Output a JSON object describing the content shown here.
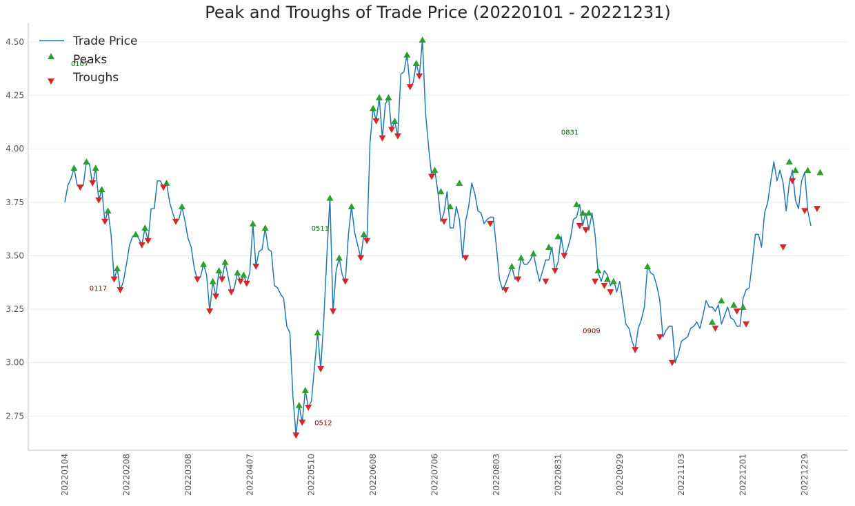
{
  "chart_data": {
    "type": "line",
    "title": "Peak and Troughs of Trade Price (20220101 - 20221231)",
    "xlabel": "",
    "ylabel": "",
    "ylim": [
      2.59,
      4.59
    ],
    "yticks": [
      2.75,
      3.0,
      3.25,
      3.5,
      3.75,
      4.0,
      4.25,
      4.5
    ],
    "ytick_labels": [
      "2.75",
      "3.00",
      "3.25",
      "3.50",
      "3.75",
      "4.00",
      "4.25",
      "4.50"
    ],
    "xtick_labels": [
      "20220104",
      "20220208",
      "20220308",
      "20220407",
      "20220510",
      "20220608",
      "20220706",
      "20220803",
      "20220831",
      "20220929",
      "20221103",
      "20221201",
      "20221229"
    ],
    "grid": "horizontal",
    "legend_position": "top-left",
    "colors": {
      "line": "#1f77b4",
      "peak": "#2ca02c",
      "trough": "#d62728",
      "peak_text": "#006400",
      "trough_text": "#8b0000"
    },
    "series": [
      {
        "name": "Trade Price",
        "marker": "line",
        "values": [
          3.75,
          3.83,
          3.86,
          3.91,
          3.83,
          3.82,
          3.83,
          3.94,
          3.93,
          3.83,
          3.91,
          3.76,
          3.81,
          3.66,
          3.71,
          3.6,
          3.39,
          3.44,
          3.34,
          3.38,
          3.46,
          3.55,
          3.59,
          3.6,
          3.58,
          3.55,
          3.63,
          3.57,
          3.72,
          3.72,
          3.85,
          3.85,
          3.82,
          3.84,
          3.75,
          3.7,
          3.66,
          3.67,
          3.73,
          3.66,
          3.58,
          3.54,
          3.44,
          3.39,
          3.4,
          3.46,
          3.41,
          3.24,
          3.38,
          3.31,
          3.43,
          3.39,
          3.47,
          3.4,
          3.33,
          3.35,
          3.42,
          3.38,
          3.41,
          3.37,
          3.42,
          3.65,
          3.45,
          3.52,
          3.53,
          3.63,
          3.53,
          3.52,
          3.36,
          3.35,
          3.32,
          3.3,
          3.17,
          3.14,
          2.84,
          2.66,
          2.8,
          2.72,
          2.87,
          2.79,
          2.82,
          2.98,
          3.14,
          2.97,
          3.2,
          3.5,
          3.77,
          3.24,
          3.43,
          3.49,
          3.41,
          3.38,
          3.6,
          3.73,
          3.61,
          3.55,
          3.49,
          3.6,
          3.57,
          4.03,
          4.19,
          4.13,
          4.24,
          4.05,
          4.21,
          4.24,
          4.09,
          4.13,
          4.06,
          4.35,
          4.36,
          4.44,
          4.29,
          4.31,
          4.4,
          4.34,
          4.51,
          4.17,
          4.01,
          3.87,
          3.9,
          3.8,
          3.66,
          3.7,
          3.8,
          3.63,
          3.63,
          3.73,
          3.67,
          3.49,
          3.66,
          3.73,
          3.84,
          3.79,
          3.71,
          3.7,
          3.65,
          3.67,
          3.68,
          3.68,
          3.54,
          3.39,
          3.34,
          3.37,
          3.41,
          3.45,
          3.39,
          3.4,
          3.49,
          3.46,
          3.46,
          3.48,
          3.51,
          3.44,
          3.38,
          3.43,
          3.48,
          3.48,
          3.54,
          3.43,
          3.47,
          3.59,
          3.5,
          3.53,
          3.58,
          3.67,
          3.68,
          3.74,
          3.64,
          3.7,
          3.62,
          3.7,
          3.6,
          3.42,
          3.38,
          3.43,
          3.41,
          3.36,
          3.39,
          3.33,
          3.38,
          3.28,
          3.18,
          3.16,
          3.1,
          3.06,
          3.16,
          3.2,
          3.26,
          3.45,
          3.42,
          3.41,
          3.36,
          3.29,
          3.12,
          3.15,
          3.17,
          3.17,
          3.0,
          3.04,
          3.1,
          3.11,
          3.12,
          3.16,
          3.17,
          3.19,
          3.16,
          3.22,
          3.29,
          3.26,
          3.26,
          3.24,
          3.27,
          3.18,
          3.22,
          3.26,
          3.21,
          3.2,
          3.17,
          3.17,
          3.3,
          3.34,
          3.35,
          3.47,
          3.6,
          3.6,
          3.54,
          3.7,
          3.75,
          3.85,
          3.94,
          3.85,
          3.9,
          3.84,
          3.71,
          3.84,
          3.9,
          3.76,
          3.72,
          3.85,
          3.89,
          3.71,
          3.64
        ]
      },
      {
        "name": "Peaks",
        "marker": "triangle-up",
        "points": [
          [
            3,
            3.91
          ],
          [
            7,
            3.94
          ],
          [
            10,
            3.91
          ],
          [
            12,
            3.81
          ],
          [
            14,
            3.71
          ],
          [
            17,
            3.44
          ],
          [
            23,
            3.6
          ],
          [
            26,
            3.63
          ],
          [
            33,
            3.84
          ],
          [
            38,
            3.73
          ],
          [
            45,
            3.46
          ],
          [
            48,
            3.38
          ],
          [
            50,
            3.43
          ],
          [
            52,
            3.47
          ],
          [
            56,
            3.42
          ],
          [
            58,
            3.41
          ],
          [
            61,
            3.65
          ],
          [
            65,
            3.63
          ],
          [
            76,
            2.8
          ],
          [
            78,
            2.87
          ],
          [
            82,
            3.14
          ],
          [
            86,
            3.77
          ],
          [
            89,
            3.49
          ],
          [
            93,
            3.73
          ],
          [
            97,
            3.6
          ],
          [
            100,
            4.19
          ],
          [
            102,
            4.24
          ],
          [
            105,
            4.24
          ],
          [
            107,
            4.13
          ],
          [
            111,
            4.44
          ],
          [
            114,
            4.4
          ],
          [
            116,
            4.51
          ],
          [
            120,
            3.9
          ],
          [
            122,
            3.8
          ],
          [
            125,
            3.73
          ],
          [
            128,
            3.84
          ],
          [
            145,
            3.45
          ],
          [
            148,
            3.49
          ],
          [
            152,
            3.51
          ],
          [
            157,
            3.54
          ],
          [
            160,
            3.59
          ],
          [
            166,
            3.74
          ],
          [
            168,
            3.7
          ],
          [
            170,
            3.7
          ],
          [
            173,
            3.43
          ],
          [
            176,
            3.39
          ],
          [
            178,
            3.38
          ],
          [
            189,
            3.45
          ],
          [
            210,
            3.19
          ],
          [
            213,
            3.29
          ],
          [
            217,
            3.27
          ],
          [
            220,
            3.26
          ],
          [
            235,
            3.94
          ],
          [
            237,
            3.9
          ],
          [
            241,
            3.9
          ],
          [
            245,
            3.89
          ]
        ]
      },
      {
        "name": "Troughs",
        "marker": "triangle-down",
        "points": [
          [
            5,
            3.82
          ],
          [
            9,
            3.84
          ],
          [
            11,
            3.76
          ],
          [
            13,
            3.66
          ],
          [
            16,
            3.39
          ],
          [
            18,
            3.34
          ],
          [
            25,
            3.55
          ],
          [
            27,
            3.57
          ],
          [
            32,
            3.82
          ],
          [
            36,
            3.66
          ],
          [
            43,
            3.39
          ],
          [
            47,
            3.24
          ],
          [
            49,
            3.31
          ],
          [
            51,
            3.39
          ],
          [
            54,
            3.33
          ],
          [
            57,
            3.38
          ],
          [
            59,
            3.37
          ],
          [
            62,
            3.45
          ],
          [
            75,
            2.66
          ],
          [
            77,
            2.72
          ],
          [
            79,
            2.79
          ],
          [
            83,
            2.97
          ],
          [
            87,
            3.24
          ],
          [
            91,
            3.38
          ],
          [
            96,
            3.49
          ],
          [
            98,
            3.57
          ],
          [
            101,
            4.13
          ],
          [
            103,
            4.05
          ],
          [
            106,
            4.09
          ],
          [
            108,
            4.06
          ],
          [
            112,
            4.29
          ],
          [
            115,
            4.34
          ],
          [
            119,
            3.87
          ],
          [
            123,
            3.66
          ],
          [
            130,
            3.49
          ],
          [
            138,
            3.65
          ],
          [
            143,
            3.34
          ],
          [
            147,
            3.39
          ],
          [
            156,
            3.38
          ],
          [
            159,
            3.43
          ],
          [
            162,
            3.5
          ],
          [
            167,
            3.64
          ],
          [
            169,
            3.62
          ],
          [
            172,
            3.38
          ],
          [
            175,
            3.36
          ],
          [
            177,
            3.33
          ],
          [
            185,
            3.06
          ],
          [
            193,
            3.12
          ],
          [
            197,
            3.0
          ],
          [
            211,
            3.16
          ],
          [
            218,
            3.24
          ],
          [
            221,
            3.18
          ],
          [
            233,
            3.54
          ],
          [
            236,
            3.85
          ],
          [
            240,
            3.71
          ],
          [
            244,
            3.72
          ]
        ]
      }
    ],
    "annotations": [
      {
        "text": "0107",
        "x": 2,
        "y": 4.4,
        "kind": "peak"
      },
      {
        "text": "0117",
        "x": 8,
        "y": 3.35,
        "kind": "trough"
      },
      {
        "text": "0511",
        "x": 80,
        "y": 3.63,
        "kind": "peak"
      },
      {
        "text": "0512",
        "x": 81,
        "y": 2.72,
        "kind": "trough"
      },
      {
        "text": "0831",
        "x": 161,
        "y": 4.08,
        "kind": "peak"
      },
      {
        "text": "0909",
        "x": 168,
        "y": 3.15,
        "kind": "trough"
      }
    ]
  }
}
